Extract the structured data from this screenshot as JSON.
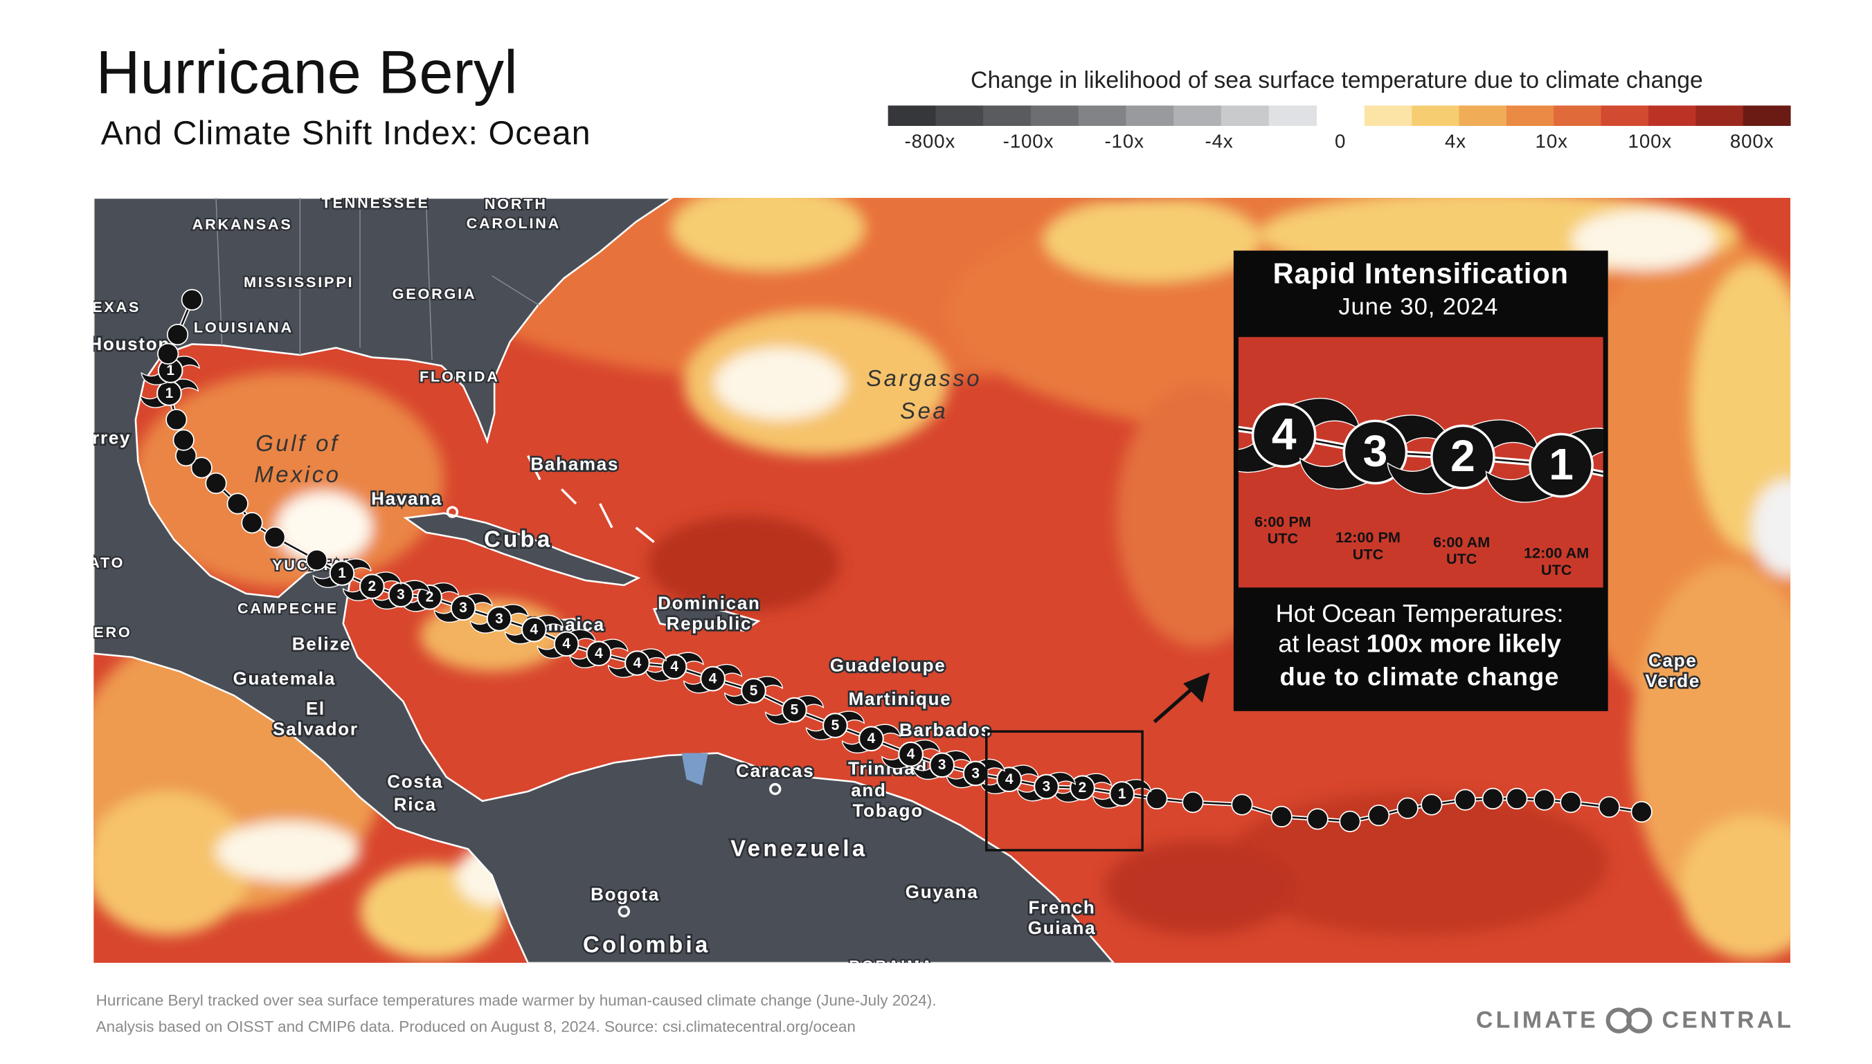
{
  "header": {
    "title": "Hurricane Beryl",
    "subtitle": "And Climate Shift Index: Ocean"
  },
  "legend": {
    "title": "Change in likelihood of sea surface temperature due to climate change",
    "cool_colors": [
      "#36373a",
      "#47494d",
      "#595b5f",
      "#6c6e72",
      "#818387",
      "#989a9d",
      "#b0b1b4",
      "#c9cacc",
      "#e0e1e4"
    ],
    "warm_colors": [
      "#fbe4a6",
      "#f7cd72",
      "#f1ac58",
      "#ea8a45",
      "#e06a3a",
      "#d24a2f",
      "#bc3326",
      "#9a281d",
      "#6a1b14"
    ],
    "labels": [
      "-800x",
      "-100x",
      "-10x",
      "-4x",
      "0",
      "4x",
      "10x",
      "100x",
      "800x"
    ]
  },
  "map": {
    "labels": [
      "TENNESSEE",
      "NORTH",
      "CAROLINA",
      "ARKANSAS",
      "MISSISSIPPI",
      "GEORGIA",
      "EXAS",
      "LOUISIANA",
      "Houston",
      "FLORIDA",
      "rrey",
      "Gulf of",
      "Mexico",
      "Sargasso",
      "Sea",
      "Bahamas",
      "Havana",
      "Cuba",
      "ATO",
      "YUCATAN",
      "CAMPECHE",
      "ERO",
      "Dominican",
      "Republic",
      "Jamaica",
      "Belize",
      "Guatemala",
      "El",
      "Salvador",
      "Guadeloupe",
      "Martinique",
      "Barbados",
      "Trinidad",
      "and",
      "Tobago",
      "Caracas",
      "Costa",
      "Rica",
      "Venezuela",
      "Guyana",
      "French",
      "Guiana",
      "Bogota",
      "Colombia",
      "RORAIMA",
      "Cape",
      "Verde"
    ]
  },
  "storm_track": {
    "categories": [
      null,
      null,
      null,
      null,
      null,
      null,
      null,
      null,
      null,
      null,
      null,
      null,
      null,
      null,
      null,
      null,
      "1",
      "2",
      "3",
      "4",
      "3",
      "3",
      "4",
      "4",
      "5",
      "5",
      "5",
      "4",
      "4",
      "4",
      "4",
      "4",
      "4",
      "3",
      "3",
      "2",
      "3",
      "2",
      "1",
      null,
      null,
      null,
      null,
      null,
      null,
      null,
      null,
      null,
      "1",
      "1",
      null,
      null,
      null
    ]
  },
  "inset": {
    "title": "Rapid Intensification",
    "date": "June 30, 2024",
    "categories": [
      "4",
      "3",
      "2",
      "1"
    ],
    "times": [
      "6:00 PM",
      "12:00 PM",
      "6:00 AM",
      "12:00 AM"
    ],
    "time_zone": "UTC",
    "caption": [
      "Hot Ocean Temperatures:",
      "at least ",
      "100x more likely",
      "due to climate change"
    ]
  },
  "footer": {
    "lines": [
      "Hurricane Beryl tracked over sea surface temperatures made warmer by human-caused climate change (June-July 2024).",
      "Analysis based on OISST and CMIP6 data. Produced on August 8, 2024. Source: csi.climatecentral.org/ocean"
    ],
    "logo": [
      "CLIMATE",
      "CENTRAL"
    ]
  }
}
